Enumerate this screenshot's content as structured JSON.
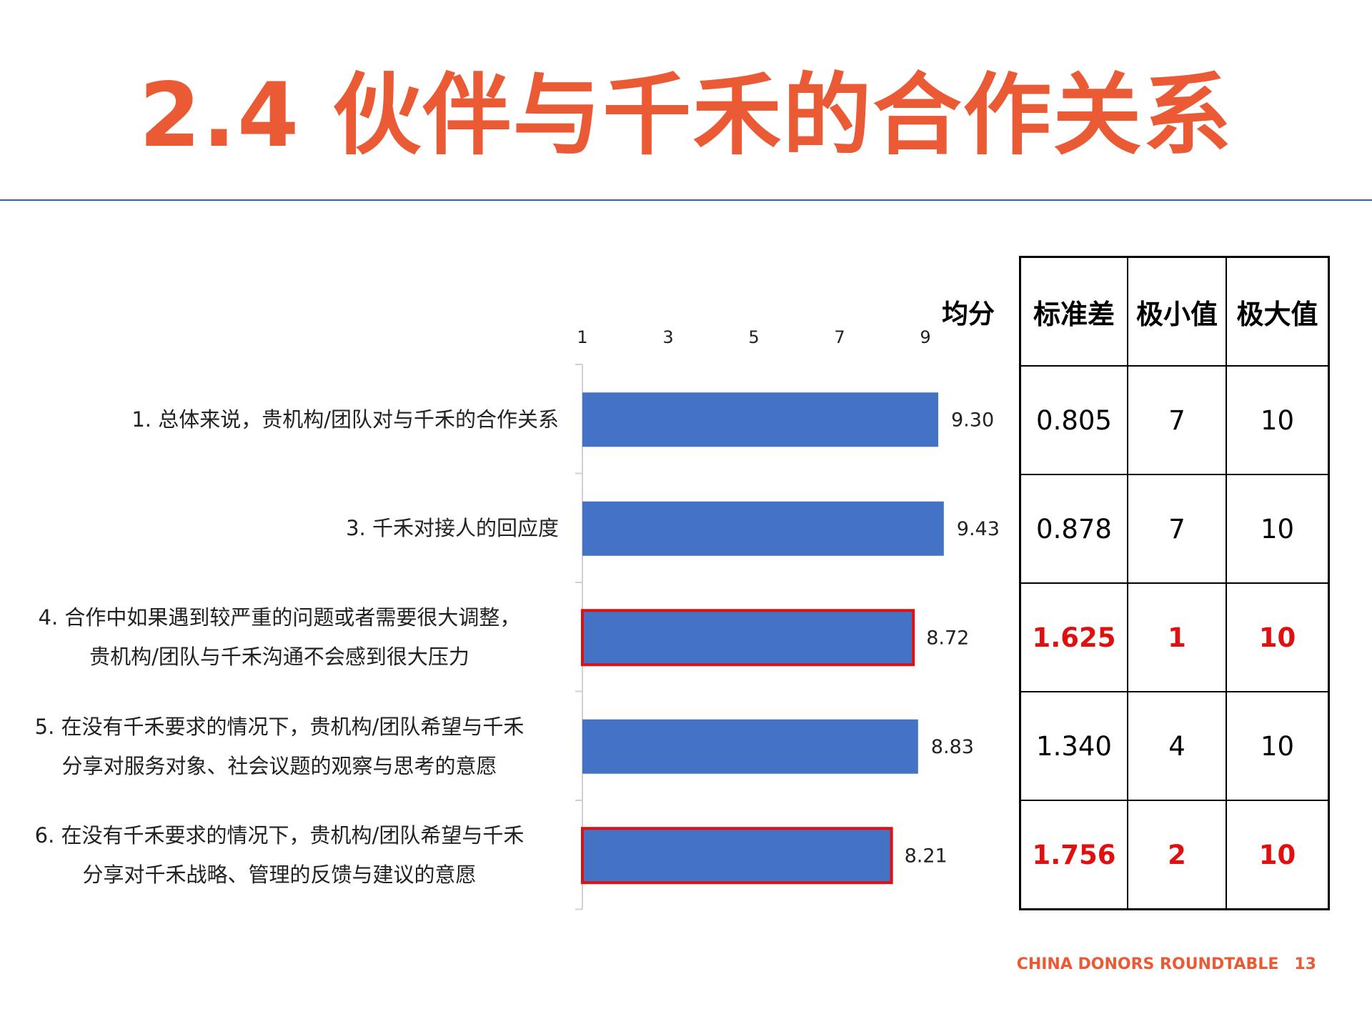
{
  "title": "2.4 伙伴与千禾的合作关系",
  "chart_data": {
    "type": "bar",
    "orientation": "horizontal",
    "categories": [
      "1. 总体来说，贵机构/团队对与千禾的合作关系",
      "3. 千禾对接人的回应度",
      "4. 合作中如果遇到较严重的问题或者需要很大调整，贵机构/团队与千禾沟通不会感到很大压力",
      "5. 在没有千禾要求的情况下，贵机构/团队希望与千禾分享对服务对象、社会议题的观察与思考的意愿",
      "6. 在没有千禾要求的情况下，贵机构/团队希望与千禾分享对千禾战略、管理的反馈与建议的意愿"
    ],
    "category_lines": [
      [
        "1. 总体来说，贵机构/团队对与千禾的合作关系"
      ],
      [
        "3. 千禾对接人的回应度"
      ],
      [
        "4. 合作中如果遇到较严重的问题或者需要很大调整，",
        "贵机构/团队与千禾沟通不会感到很大压力"
      ],
      [
        "5. 在没有千禾要求的情况下，贵机构/团队希望与千禾",
        "分享对服务对象、社会议题的观察与思考的意愿"
      ],
      [
        "6. 在没有千禾要求的情况下，贵机构/团队希望与千禾",
        "分享对千禾战略、管理的反馈与建议的意愿"
      ]
    ],
    "values": [
      9.3,
      9.43,
      8.72,
      8.83,
      8.21
    ],
    "value_labels": [
      "9.30",
      "9.43",
      "8.72",
      "8.83",
      "8.21"
    ],
    "highlighted": [
      false,
      false,
      true,
      false,
      true
    ],
    "x_ticks": [
      "1",
      "3",
      "5",
      "7",
      "9"
    ],
    "xlim": [
      1,
      9
    ],
    "value_header": "均分",
    "bar_color": "#4472c4",
    "highlight_outline_color": "#e01010",
    "grid": false
  },
  "stats_table": {
    "headers": [
      "标准差",
      "极小值",
      "极大值"
    ],
    "rows": [
      {
        "std": "0.805",
        "min": "7",
        "max": "10",
        "highlight": false
      },
      {
        "std": "0.878",
        "min": "7",
        "max": "10",
        "highlight": false
      },
      {
        "std": "1.625",
        "min": "1",
        "max": "10",
        "highlight": true
      },
      {
        "std": "1.340",
        "min": "4",
        "max": "10",
        "highlight": false
      },
      {
        "std": "1.756",
        "min": "2",
        "max": "10",
        "highlight": true
      }
    ]
  },
  "footer": {
    "org": "CHINA DONORS ROUNDTABLE",
    "page": "13"
  },
  "colors": {
    "title": "#ea5a35",
    "rule": "#2e62b3",
    "highlight_text": "#e01010"
  }
}
